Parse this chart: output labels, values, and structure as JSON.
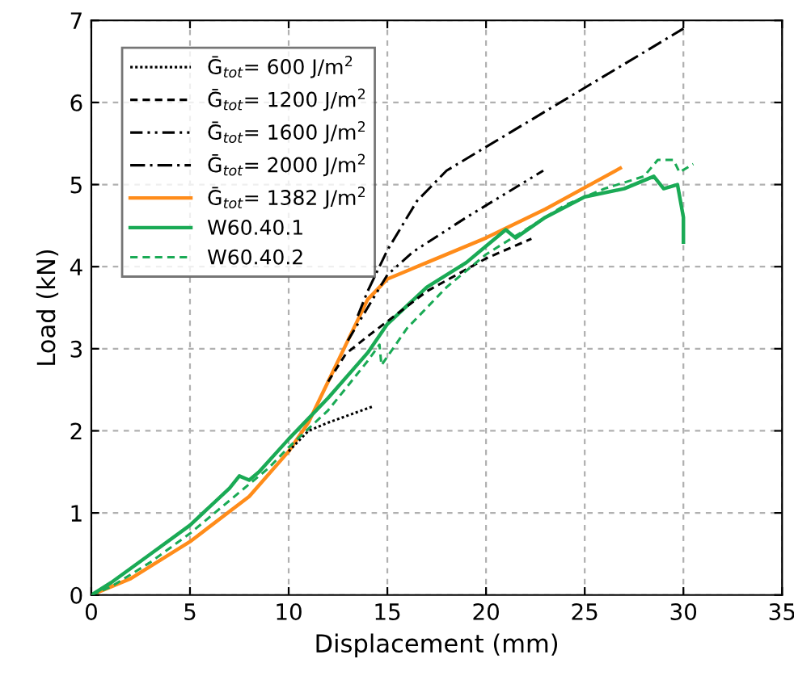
{
  "chart_data": {
    "type": "line",
    "xlabel": "Displacement (mm)",
    "ylabel": "Load (kN)",
    "xlim": [
      0,
      35
    ],
    "ylim": [
      0,
      7
    ],
    "xticks": [
      0,
      5,
      10,
      15,
      20,
      25,
      30,
      35
    ],
    "yticks": [
      0,
      1,
      2,
      3,
      4,
      5,
      6,
      7
    ],
    "grid": true,
    "legend": "top left",
    "marker": "none",
    "series": [
      {
        "name": "Ḡ$_{tot}$= 600 J/m$^{2}$",
        "color": "#000000",
        "line_style": "dotted",
        "x": [
          10,
          11,
          12,
          14.3
        ],
        "values": [
          1.75,
          2.0,
          2.1,
          2.3
        ]
      },
      {
        "name": "Ḡ$_{tot}$= 1200 J/m$^{2}$",
        "color": "#000000",
        "line_style": "dashed",
        "x": [
          12,
          12.9,
          14,
          17,
          20,
          22.3
        ],
        "values": [
          2.6,
          2.94,
          3.15,
          3.7,
          4.1,
          4.34
        ]
      },
      {
        "name": "Ḡ$_{tot}$= 1600 J/m$^{2}$",
        "color": "#000000",
        "line_style": "dashdotdot",
        "x": [
          13,
          14,
          15,
          16.3,
          19,
          22.9
        ],
        "values": [
          3.1,
          3.5,
          3.9,
          4.18,
          4.6,
          5.17
        ]
      },
      {
        "name": "Ḡ$_{tot}$= 2000 J/m$^{2}$",
        "color": "#000000",
        "line_style": "dashdot",
        "x": [
          13.5,
          14,
          15,
          16.5,
          18,
          30
        ],
        "values": [
          3.4,
          3.7,
          4.2,
          4.8,
          5.17,
          6.9
        ]
      },
      {
        "name": "Ḡ$_{tot}$= 1382 J/m$^{2}$",
        "color": "#ff8c1a",
        "line_style": "solid",
        "x": [
          0,
          2,
          5,
          8,
          10,
          11,
          12,
          13,
          14,
          15,
          17,
          20,
          23,
          26.8
        ],
        "values": [
          0,
          0.2,
          0.65,
          1.2,
          1.75,
          2.1,
          2.6,
          3.1,
          3.6,
          3.85,
          4.05,
          4.35,
          4.7,
          5.2
        ]
      },
      {
        "name": "W60.40.1",
        "color": "#1aaa55",
        "line_style": "solid",
        "x": [
          0,
          1,
          3,
          5,
          7,
          7.5,
          8,
          8.5,
          10,
          12,
          14,
          15,
          17,
          19,
          20,
          21,
          21.5,
          23,
          25,
          27,
          28.5,
          29,
          29.7,
          30,
          30
        ],
        "values": [
          0,
          0.15,
          0.5,
          0.85,
          1.3,
          1.45,
          1.4,
          1.5,
          1.9,
          2.4,
          2.95,
          3.3,
          3.75,
          4.05,
          4.25,
          4.45,
          4.35,
          4.6,
          4.85,
          4.95,
          5.1,
          4.95,
          5.0,
          4.6,
          4.3
        ]
      },
      {
        "name": "W60.40.2",
        "color": "#1aaa55",
        "line_style": "dashed",
        "x": [
          0,
          1,
          3,
          5,
          7,
          9,
          10,
          12,
          14,
          14.6,
          14.7,
          16,
          18,
          20,
          22,
          24,
          26,
          28,
          28.7,
          29.5,
          29.8,
          30.5
        ],
        "values": [
          0,
          0.1,
          0.4,
          0.75,
          1.15,
          1.55,
          1.8,
          2.25,
          2.85,
          3.05,
          2.8,
          3.25,
          3.75,
          4.15,
          4.45,
          4.75,
          4.95,
          5.1,
          5.3,
          5.3,
          5.15,
          5.25
        ]
      }
    ]
  }
}
